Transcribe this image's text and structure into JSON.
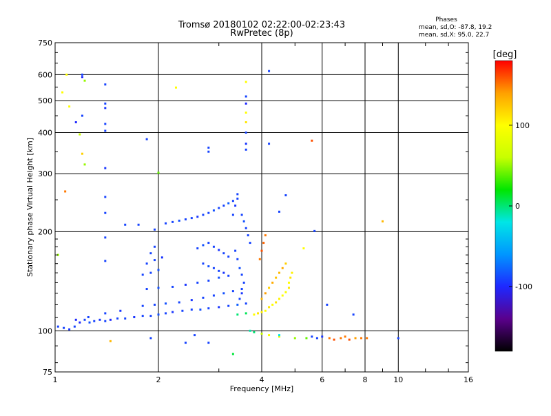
{
  "chart_data": {
    "type": "scatter",
    "title": "Tromsø 20180102 02:22:00-02:23:43",
    "subtitle": "RwPretec (8p)",
    "xlabel": "Frequency [MHz]",
    "ylabel": "Stationary phase Virtual Height [km]",
    "x_scale": "log",
    "y_scale": "log",
    "xlim": [
      1,
      16
    ],
    "ylim": [
      75,
      750
    ],
    "x_ticks": [
      1,
      2,
      4,
      6,
      8,
      10,
      16
    ],
    "y_ticks": [
      75,
      100,
      200,
      300,
      400,
      500,
      600,
      750
    ],
    "grid": true,
    "stats": {
      "header": "Phases",
      "line_o": "mean, sd,O: -87.8, 19.2",
      "line_x": "mean, sd,X:  95.0, 22.7"
    },
    "colorbar": {
      "label": "[deg]",
      "range": [
        -180,
        180
      ],
      "ticks": [
        -100,
        0,
        100
      ],
      "colors": [
        "#000000",
        "#5a008c",
        "#1e28ff",
        "#0096ff",
        "#00e6e6",
        "#00e600",
        "#c8ff00",
        "#ffff00",
        "#ffa000",
        "#ff0000"
      ]
    },
    "series": [
      {
        "color_scale": true,
        "points": [
          [
            1.02,
            103,
            -90
          ],
          [
            1.06,
            102,
            -90
          ],
          [
            1.1,
            101,
            -95
          ],
          [
            1.14,
            103,
            -90
          ],
          [
            1.18,
            106,
            -100
          ],
          [
            1.22,
            108,
            -90
          ],
          [
            1.26,
            106,
            -85
          ],
          [
            1.3,
            107,
            -90
          ],
          [
            1.35,
            108,
            -95
          ],
          [
            1.4,
            107,
            -90
          ],
          [
            1.45,
            108,
            -100
          ],
          [
            1.52,
            109,
            -90
          ],
          [
            1.6,
            109,
            -90
          ],
          [
            1.7,
            110,
            -95
          ],
          [
            1.8,
            111,
            -90
          ],
          [
            1.9,
            111,
            -90
          ],
          [
            2.0,
            112,
            -85
          ],
          [
            2.1,
            113,
            -90
          ],
          [
            2.2,
            114,
            -95
          ],
          [
            2.35,
            115,
            -90
          ],
          [
            2.5,
            116,
            -90
          ],
          [
            2.65,
            116,
            -85
          ],
          [
            2.8,
            117,
            -90
          ],
          [
            3.0,
            118,
            -95
          ],
          [
            3.2,
            119,
            -90
          ],
          [
            3.4,
            120,
            -80
          ],
          [
            3.6,
            121,
            -90
          ],
          [
            1.15,
            108,
            -100
          ],
          [
            1.25,
            110,
            -90
          ],
          [
            1.4,
            113,
            -90
          ],
          [
            1.55,
            115,
            -95
          ],
          [
            1.8,
            119,
            -90
          ],
          [
            1.95,
            120,
            -90
          ],
          [
            2.1,
            121,
            -85
          ],
          [
            2.3,
            122,
            -90
          ],
          [
            2.5,
            124,
            -95
          ],
          [
            2.7,
            126,
            -90
          ],
          [
            2.9,
            128,
            -90
          ],
          [
            3.1,
            130,
            -85
          ],
          [
            3.3,
            132,
            -90
          ],
          [
            3.5,
            134,
            -90
          ],
          [
            1.85,
            134,
            -90
          ],
          [
            2.0,
            135,
            -85
          ],
          [
            2.2,
            136,
            -90
          ],
          [
            2.4,
            138,
            -95
          ],
          [
            2.6,
            140,
            -90
          ],
          [
            2.8,
            142,
            -90
          ],
          [
            3.0,
            145,
            -85
          ],
          [
            3.2,
            147,
            -90
          ],
          [
            1.8,
            148,
            -90
          ],
          [
            1.9,
            150,
            -90
          ],
          [
            2.0,
            153,
            -85
          ],
          [
            1.85,
            160,
            -90
          ],
          [
            1.95,
            164,
            -90
          ],
          [
            2.05,
            167,
            -95
          ],
          [
            1.9,
            172,
            -90
          ],
          [
            1.95,
            180,
            -90
          ],
          [
            2.1,
            212,
            -90
          ],
          [
            2.2,
            214,
            -90
          ],
          [
            2.3,
            216,
            -85
          ],
          [
            2.4,
            218,
            -90
          ],
          [
            2.5,
            220,
            -90
          ],
          [
            2.6,
            222,
            -95
          ],
          [
            2.7,
            225,
            -90
          ],
          [
            2.8,
            228,
            -90
          ],
          [
            2.9,
            232,
            -85
          ],
          [
            3.0,
            236,
            -90
          ],
          [
            3.1,
            240,
            -90
          ],
          [
            3.2,
            244,
            -80
          ],
          [
            3.3,
            248,
            -90
          ],
          [
            3.4,
            252,
            -90
          ],
          [
            2.6,
            178,
            -90
          ],
          [
            2.7,
            182,
            -85
          ],
          [
            2.8,
            185,
            -90
          ],
          [
            2.9,
            180,
            -90
          ],
          [
            3.0,
            176,
            -95
          ],
          [
            3.1,
            172,
            -90
          ],
          [
            3.2,
            168,
            -90
          ],
          [
            2.7,
            160,
            -90
          ],
          [
            2.8,
            157,
            -85
          ],
          [
            2.9,
            155,
            -90
          ],
          [
            3.0,
            152,
            -90
          ],
          [
            3.1,
            150,
            -95
          ],
          [
            3.35,
            175,
            -90
          ],
          [
            3.4,
            165,
            -90
          ],
          [
            3.45,
            155,
            -85
          ],
          [
            3.5,
            148,
            -90
          ],
          [
            3.55,
            140,
            -90
          ],
          [
            3.5,
            130,
            -95
          ],
          [
            3.45,
            125,
            -90
          ],
          [
            3.3,
            225,
            -90
          ],
          [
            3.35,
            240,
            -95
          ],
          [
            3.4,
            260,
            -90
          ],
          [
            3.5,
            225,
            -90
          ],
          [
            3.55,
            215,
            -85
          ],
          [
            3.6,
            205,
            -90
          ],
          [
            3.65,
            195,
            -90
          ],
          [
            3.7,
            185,
            -90
          ],
          [
            3.4,
            112,
            0
          ],
          [
            3.6,
            113,
            5
          ],
          [
            3.8,
            112,
            100
          ],
          [
            3.9,
            113,
            110
          ],
          [
            4.0,
            114,
            105
          ],
          [
            4.1,
            115,
            100
          ],
          [
            4.2,
            118,
            110
          ],
          [
            4.3,
            120,
            100
          ],
          [
            4.4,
            122,
            110
          ],
          [
            4.5,
            125,
            105
          ],
          [
            4.6,
            128,
            100
          ],
          [
            4.7,
            131,
            95
          ],
          [
            4.8,
            135,
            110
          ],
          [
            4.0,
            125,
            130
          ],
          [
            4.1,
            130,
            140
          ],
          [
            4.2,
            135,
            120
          ],
          [
            4.3,
            140,
            135
          ],
          [
            4.4,
            145,
            125
          ],
          [
            4.5,
            150,
            130
          ],
          [
            4.6,
            155,
            135
          ],
          [
            4.7,
            160,
            120
          ],
          [
            4.8,
            140,
            100
          ],
          [
            4.85,
            145,
            110
          ],
          [
            4.9,
            150,
            105
          ],
          [
            3.95,
            165,
            150
          ],
          [
            4.0,
            175,
            160
          ],
          [
            4.05,
            185,
            155
          ],
          [
            4.1,
            195,
            150
          ],
          [
            3.7,
            100,
            -10
          ],
          [
            3.8,
            99,
            0
          ],
          [
            4.0,
            98,
            60
          ],
          [
            4.2,
            97,
            95
          ],
          [
            4.5,
            96,
            80
          ],
          [
            5.0,
            95,
            50
          ],
          [
            5.4,
            95,
            40
          ],
          [
            6.3,
            95,
            150
          ],
          [
            6.5,
            94,
            160
          ],
          [
            6.8,
            95,
            150
          ],
          [
            7.0,
            96,
            150
          ],
          [
            7.2,
            94,
            160
          ],
          [
            7.5,
            95,
            140
          ],
          [
            7.8,
            95,
            150
          ],
          [
            8.1,
            95,
            150
          ],
          [
            10.0,
            95,
            -90
          ],
          [
            5.6,
            96,
            -90
          ],
          [
            5.8,
            95,
            -90
          ],
          [
            6.0,
            96,
            -95
          ],
          [
            1.2,
            600,
            -90
          ],
          [
            1.2,
            590,
            -100
          ],
          [
            1.22,
            575,
            50
          ],
          [
            1.08,
            600,
            100
          ],
          [
            1.05,
            530,
            100
          ],
          [
            1.1,
            480,
            100
          ],
          [
            1.15,
            430,
            -100
          ],
          [
            1.2,
            450,
            -90
          ],
          [
            1.18,
            395,
            60
          ],
          [
            1.2,
            345,
            120
          ],
          [
            1.22,
            320,
            50
          ],
          [
            1.07,
            265,
            150
          ],
          [
            1.02,
            170,
            50
          ],
          [
            1.4,
            560,
            -90
          ],
          [
            1.4,
            490,
            -90
          ],
          [
            1.4,
            475,
            -95
          ],
          [
            1.4,
            425,
            -90
          ],
          [
            1.4,
            405,
            -90
          ],
          [
            1.4,
            312,
            -95
          ],
          [
            1.4,
            255,
            -90
          ],
          [
            1.4,
            228,
            -90
          ],
          [
            1.4,
            192,
            -90
          ],
          [
            1.4,
            163,
            -90
          ],
          [
            1.85,
            382,
            -90
          ],
          [
            2.0,
            302,
            40
          ],
          [
            2.25,
            548,
            100
          ],
          [
            2.8,
            360,
            -90
          ],
          [
            2.8,
            350,
            -90
          ],
          [
            3.6,
            570,
            100
          ],
          [
            3.6,
            515,
            -90
          ],
          [
            3.6,
            490,
            -100
          ],
          [
            3.6,
            460,
            100
          ],
          [
            3.6,
            430,
            110
          ],
          [
            3.6,
            400,
            -90
          ],
          [
            3.6,
            370,
            -95
          ],
          [
            3.6,
            355,
            -90
          ],
          [
            4.2,
            615,
            -90
          ],
          [
            4.2,
            370,
            -90
          ],
          [
            4.5,
            230,
            -90
          ],
          [
            4.7,
            258,
            -90
          ],
          [
            5.6,
            378,
            160
          ],
          [
            5.7,
            201,
            -90
          ],
          [
            9.0,
            215,
            130
          ],
          [
            6.2,
            120,
            -90
          ],
          [
            7.4,
            112,
            -90
          ],
          [
            3.3,
            85,
            10
          ],
          [
            2.8,
            92,
            -90
          ],
          [
            2.4,
            92,
            -90
          ],
          [
            1.45,
            93,
            130
          ],
          [
            1.9,
            95,
            -90
          ],
          [
            2.55,
            97,
            -90
          ],
          [
            1.6,
            210,
            -90
          ],
          [
            1.75,
            210,
            -90
          ],
          [
            1.95,
            203,
            -90
          ],
          [
            5.3,
            178,
            100
          ],
          [
            4.5,
            97,
            -20
          ]
        ]
      }
    ]
  }
}
